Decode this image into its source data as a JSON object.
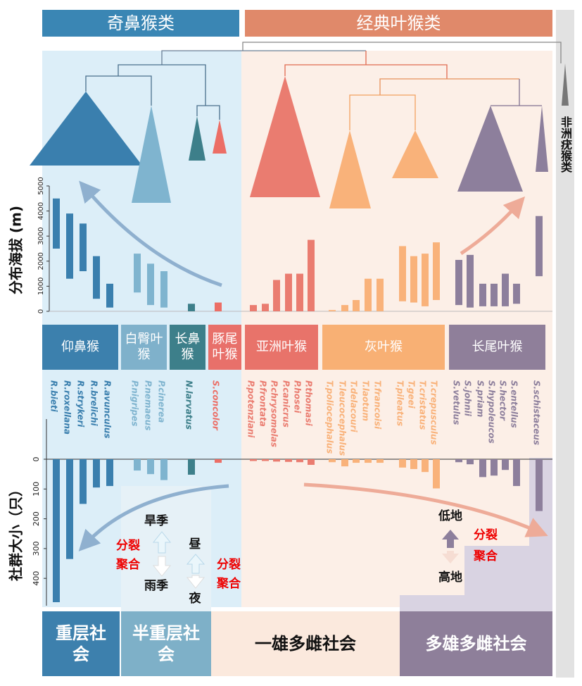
{
  "headers": {
    "odd_nosed": "奇鼻猴类",
    "classic": "经典叶猴类",
    "african": "非洲疣猴类"
  },
  "chart_data": [
    {
      "type": "floating_bar",
      "y_label": "分布海拔 (m)",
      "categories": [
        "R.bieti",
        "R.roxellana",
        "R.strykeri",
        "R.brelichi",
        "R.avunculus",
        "P.nigripes",
        "P.nemaeus",
        "P.cinerea",
        "N.larvatus",
        "S.concolor",
        "P.potenziani",
        "P.frontata",
        "P.chrysomelas",
        "P.canicrus",
        "P.hosei",
        "P.thomasi",
        "T.poliocephalus",
        "T.leucocephalus",
        "T.delacouri",
        "T.laotum",
        "T.francoisi",
        "T.pileatus",
        "T.geei",
        "T.cristatus",
        "T.crepusculus",
        "S.vetulus",
        "S.johnii",
        "S.priam",
        "S.hypoleucos",
        "S.hector",
        "S.entellus",
        "S.schistaceus"
      ],
      "low": [
        2500,
        1300,
        1600,
        500,
        150,
        750,
        250,
        150,
        0,
        0,
        0,
        0,
        0,
        0,
        0,
        0,
        0,
        0,
        0,
        0,
        0,
        400,
        350,
        200,
        450,
        250,
        150,
        200,
        200,
        200,
        300,
        1400
      ],
      "high": [
        4500,
        3900,
        3500,
        2200,
        1100,
        2300,
        1900,
        1600,
        300,
        350,
        250,
        300,
        1250,
        1500,
        1500,
        2850,
        50,
        250,
        450,
        1300,
        1300,
        2600,
        2200,
        2300,
        2750,
        2050,
        2250,
        1100,
        1100,
        1500,
        1100,
        3800
      ],
      "colors": [
        "#3a7fae",
        "#3a7fae",
        "#3a7fae",
        "#3a7fae",
        "#3a7fae",
        "#7fb4cf",
        "#7fb4cf",
        "#7fb4cf",
        "#3d7f8a",
        "#ec6e66",
        "#ea7c70",
        "#ea7c70",
        "#ea7c70",
        "#ea7c70",
        "#ea7c70",
        "#ea7c70",
        "#f9b27a",
        "#f9b27a",
        "#f9b27a",
        "#f9b27a",
        "#f9b27a",
        "#f9b27a",
        "#f9b27a",
        "#f9b27a",
        "#f9b27a",
        "#8d7f9c",
        "#8d7f9c",
        "#8d7f9c",
        "#8d7f9c",
        "#8d7f9c",
        "#8d7f9c",
        "#8d7f9c"
      ],
      "ylim": [
        0,
        5000
      ],
      "yticks": [
        0,
        1000,
        2000,
        3000,
        4000,
        5000
      ]
    },
    {
      "type": "bar",
      "y_label": "社群大小（只）",
      "inverted": true,
      "values": [
        480,
        335,
        150,
        95,
        90,
        38,
        50,
        70,
        52,
        12,
        6,
        6,
        8,
        9,
        10,
        19,
        10,
        24,
        12,
        12,
        12,
        28,
        33,
        43,
        98,
        10,
        17,
        60,
        55,
        36,
        90,
        174
      ],
      "colors": [
        "#3a7fae",
        "#3a7fae",
        "#3a7fae",
        "#3a7fae",
        "#3a7fae",
        "#7fb4cf",
        "#7fb4cf",
        "#7fb4cf",
        "#3d7f8a",
        "#ec6e66",
        "#ea7c70",
        "#ea7c70",
        "#ea7c70",
        "#ea7c70",
        "#ea7c70",
        "#ea7c70",
        "#f9b27a",
        "#f9b27a",
        "#f9b27a",
        "#f9b27a",
        "#f9b27a",
        "#f9b27a",
        "#f9b27a",
        "#f9b27a",
        "#f9b27a",
        "#8d7f9c",
        "#8d7f9c",
        "#8d7f9c",
        "#8d7f9c",
        "#8d7f9c",
        "#8d7f9c",
        "#8d7f9c"
      ],
      "ylim": [
        0,
        480
      ],
      "yticks": [
        0,
        100,
        200,
        300,
        400
      ]
    }
  ],
  "genera": [
    "仰鼻猴",
    "白臀叶猴",
    "长鼻猴",
    "豚尾叶猴",
    "亚洲叶猴",
    "灰叶猴",
    "长尾叶猴"
  ],
  "societies": [
    "重层社会",
    "半重层社会",
    "一雄多雌社会",
    "多雄多雌社会"
  ],
  "annotations": {
    "dry": "旱季",
    "wet": "雨季",
    "day": "昼",
    "night": "夜",
    "split1": "分裂",
    "merge1": "聚合",
    "split2": "分裂",
    "merge2": "聚合",
    "lowland": "低地",
    "highland": "高地",
    "split3": "分裂",
    "merge3": "聚合"
  }
}
